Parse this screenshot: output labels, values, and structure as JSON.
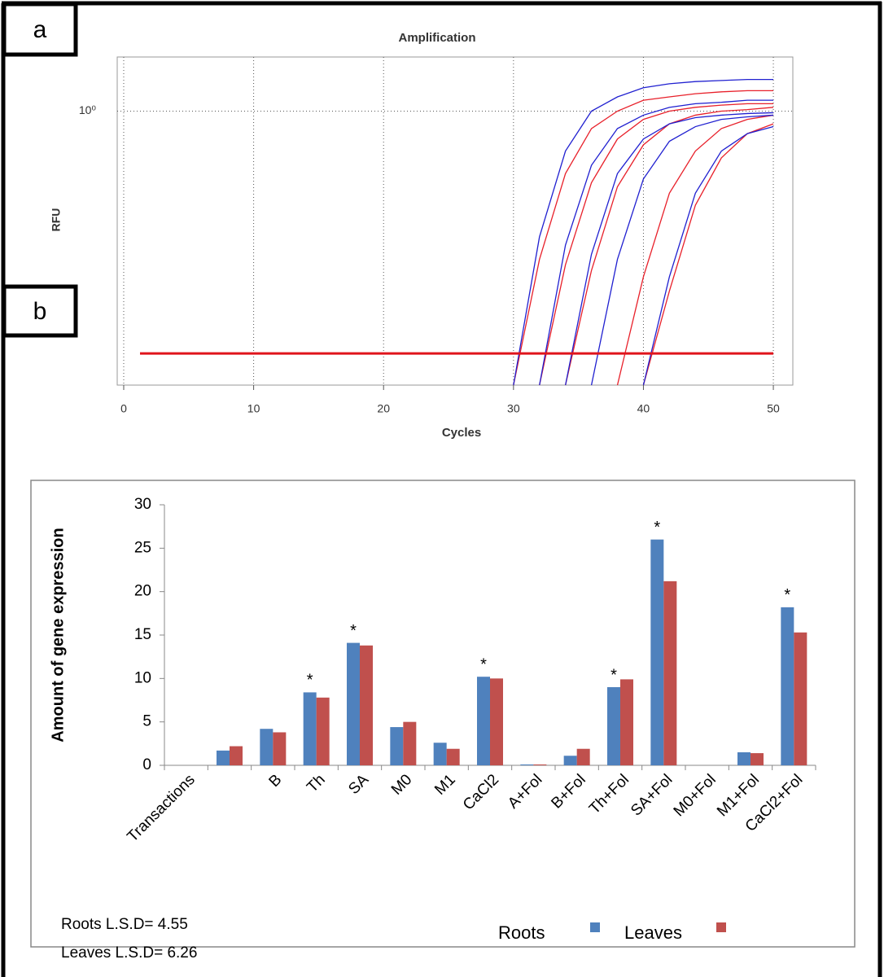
{
  "panel_labels": [
    "a",
    "b"
  ],
  "chart_data": [
    {
      "type": "line",
      "title": "Amplification",
      "xlabel": "Cycles",
      "ylabel": "RFU",
      "log_y": true,
      "grid": true,
      "xlim": [
        -0.5,
        51.5
      ],
      "xticks": [
        0,
        10,
        20,
        30,
        40,
        50
      ],
      "ylim": [
        0.03,
        2
      ],
      "yticks": [
        {
          "value": 1,
          "label": "10⁰"
        }
      ],
      "threshold": 0.045,
      "threshold_color": "#e0141c",
      "x": [
        30,
        32,
        34,
        36,
        38,
        40,
        42,
        44,
        46,
        48,
        50
      ],
      "series": [
        {
          "color": "#e8202a",
          "values": [
            0.03,
            0.15,
            0.45,
            0.8,
            1.0,
            1.15,
            1.2,
            1.25,
            1.28,
            1.3,
            1.3
          ]
        },
        {
          "color": "#e8202a",
          "values": [
            null,
            0.03,
            0.14,
            0.4,
            0.7,
            0.9,
            1.0,
            1.05,
            1.08,
            1.1,
            1.1
          ]
        },
        {
          "color": "#e8202a",
          "values": [
            null,
            null,
            0.03,
            0.13,
            0.38,
            0.65,
            0.85,
            0.95,
            1.0,
            1.02,
            1.05
          ]
        },
        {
          "color": "#e8202a",
          "values": [
            null,
            null,
            null,
            null,
            0.03,
            0.12,
            0.35,
            0.6,
            0.8,
            0.9,
            0.95
          ]
        },
        {
          "color": "#e8202a",
          "values": [
            null,
            null,
            null,
            null,
            null,
            0.03,
            0.1,
            0.3,
            0.55,
            0.75,
            0.85
          ]
        },
        {
          "color": "#2020d0",
          "values": [
            0.03,
            0.2,
            0.6,
            1.0,
            1.2,
            1.35,
            1.42,
            1.46,
            1.48,
            1.5,
            1.5
          ]
        },
        {
          "color": "#2020d0",
          "values": [
            null,
            0.03,
            0.18,
            0.5,
            0.8,
            0.95,
            1.05,
            1.1,
            1.12,
            1.15,
            1.15
          ]
        },
        {
          "color": "#2020d0",
          "values": [
            null,
            null,
            0.03,
            0.16,
            0.45,
            0.7,
            0.85,
            0.92,
            0.95,
            0.97,
            0.98
          ]
        },
        {
          "color": "#2020d0",
          "values": [
            null,
            null,
            null,
            0.03,
            0.15,
            0.42,
            0.68,
            0.82,
            0.9,
            0.93,
            0.95
          ]
        },
        {
          "color": "#2020d0",
          "values": [
            null,
            null,
            null,
            null,
            null,
            0.03,
            0.12,
            0.35,
            0.6,
            0.75,
            0.82
          ]
        }
      ]
    },
    {
      "type": "bar",
      "ylabel": "Amount of gene expression",
      "ylim": [
        0,
        30
      ],
      "yticks": [
        0,
        5,
        10,
        15,
        20,
        25,
        30
      ],
      "categories": [
        "Transactions",
        null,
        "B",
        "Th",
        "SA",
        "M0",
        "M1",
        "CaCl2",
        "A+Fol",
        "B+Fol",
        "Th+Fol",
        "SA+Fol",
        "M0+Fol",
        "M1+Fol",
        "CaCl2+Fol"
      ],
      "series": [
        {
          "name": "Roots",
          "color": "#4f81bd",
          "values": [
            null,
            1.7,
            4.2,
            8.4,
            14.1,
            4.4,
            2.6,
            10.2,
            0.1,
            1.1,
            9.0,
            26.0,
            0,
            1.5,
            18.2
          ]
        },
        {
          "name": "Leaves",
          "color": "#c0504d",
          "values": [
            null,
            2.2,
            3.8,
            7.8,
            13.8,
            5.0,
            1.9,
            10.0,
            0.1,
            1.9,
            9.9,
            21.2,
            0,
            1.4,
            15.3
          ]
        }
      ],
      "significance_label": "*",
      "significant": [
        "Th",
        "SA",
        "CaCl2",
        "Th+Fol",
        "SA+Fol",
        "CaCl2+Fol"
      ],
      "annotations": [
        "Roots  L.S.D= 4.55",
        "Leaves L.S.D= 6.26"
      ]
    }
  ]
}
